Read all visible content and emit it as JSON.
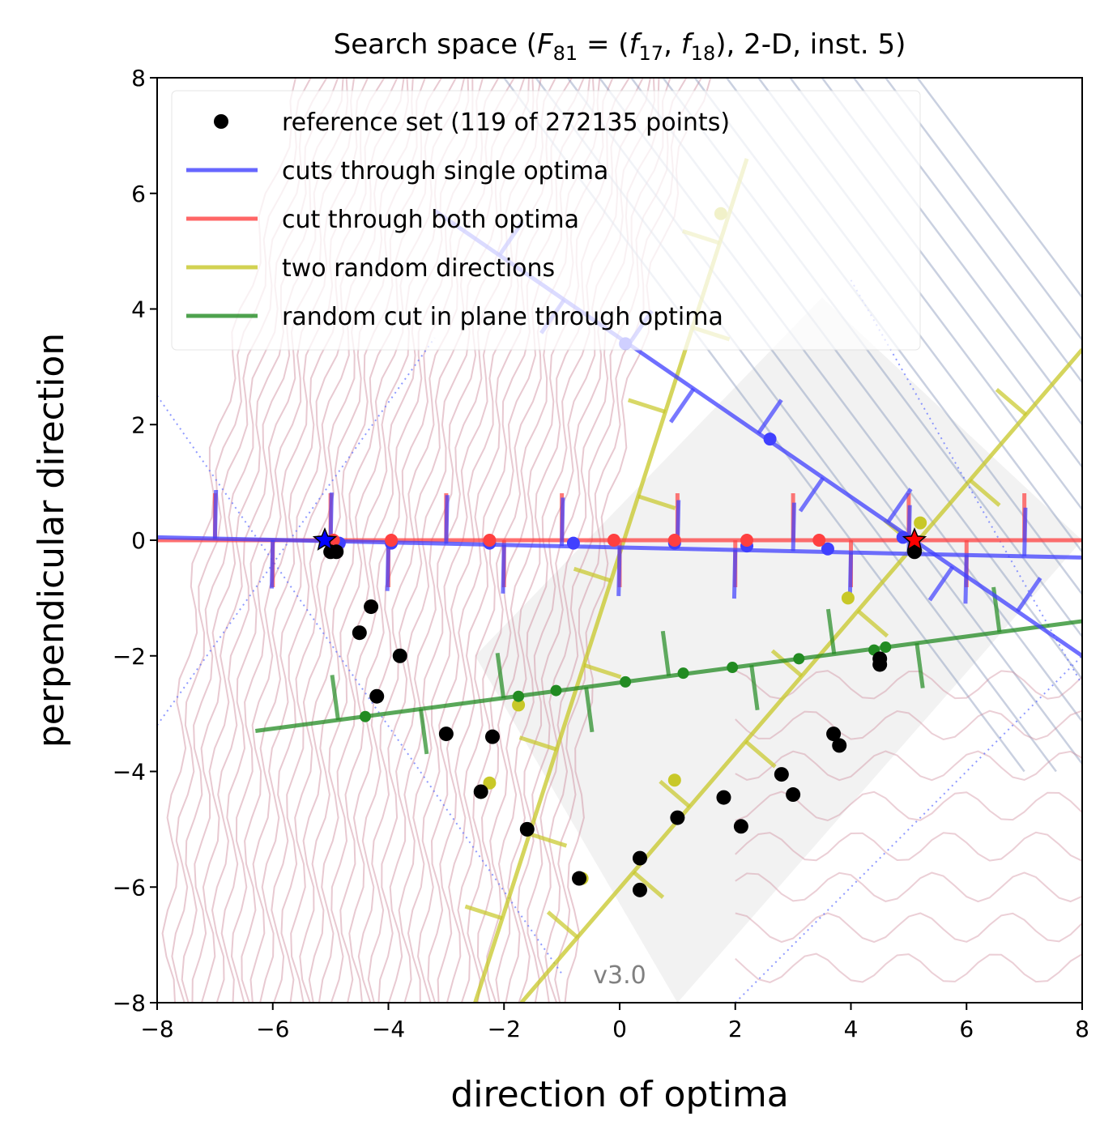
{
  "chart_data": {
    "type": "scatter",
    "title": "Search space (F81 = (f17, f18), 2-D, inst. 5)",
    "title_parts": {
      "prefix": "Search space (",
      "F": "F",
      "F_sub": "81",
      "eq": " = (",
      "f1": "f",
      "f1_sub": "17",
      "comma": ", ",
      "f2": "f",
      "f2_sub": "18",
      "suffix": "), 2-D, inst. 5)"
    },
    "xlabel": "direction of optima",
    "ylabel": "perpendicular direction",
    "xlim": [
      -8,
      8
    ],
    "ylim": [
      -8,
      8
    ],
    "xticks": [
      -8,
      -6,
      -4,
      -2,
      0,
      2,
      4,
      6,
      8
    ],
    "yticks": [
      -8,
      -6,
      -4,
      -2,
      0,
      2,
      4,
      6,
      8
    ],
    "xtick_labels": [
      "−8",
      "−6",
      "−4",
      "−2",
      "0",
      "2",
      "4",
      "6",
      "8"
    ],
    "ytick_labels": [
      "−8",
      "−6",
      "−4",
      "−2",
      "0",
      "2",
      "4",
      "6",
      "8"
    ],
    "legend_position": "top-left",
    "watermark": "v3.0",
    "colors": {
      "reference": "#000000",
      "single": "#4040ff",
      "both": "#ff4040",
      "random_dir": "#c8c828",
      "plane": "#228b22",
      "contour_f1": "#cc8899",
      "contour_f2": "#8899bb"
    },
    "series": [
      {
        "name": "reference set (119 of 272135 points)",
        "kind": "points",
        "x": [
          -5.0,
          -4.9,
          -4.3,
          -4.5,
          -3.8,
          -4.2,
          -3.0,
          -2.2,
          -2.4,
          -1.6,
          -0.7,
          0.35,
          0.35,
          1.0,
          1.8,
          2.1,
          2.8,
          3.0,
          3.7,
          3.8,
          4.5,
          4.5,
          5.1
        ],
        "y": [
          -0.2,
          -0.2,
          -1.15,
          -1.6,
          -2.0,
          -2.7,
          -3.35,
          -3.4,
          -4.35,
          -5.0,
          -5.85,
          -5.5,
          -6.05,
          -4.8,
          -4.45,
          -4.95,
          -4.05,
          -4.4,
          -3.35,
          -3.55,
          -2.05,
          -2.15,
          -0.2
        ]
      },
      {
        "name": "cuts through single optima",
        "kind": "line",
        "x": [
          -8,
          8
        ],
        "y": [
          0.05,
          -0.3
        ],
        "x2": [
          -3.2,
          8
        ],
        "y2": [
          5.7,
          -2.0
        ],
        "points_x": [
          0.1,
          2.6,
          4.9,
          -4.85,
          -3.95,
          -2.25,
          -0.8,
          0.95,
          2.2,
          3.6
        ],
        "points_y": [
          3.4,
          1.75,
          0.05,
          -0.05,
          -0.05,
          -0.05,
          -0.05,
          -0.05,
          -0.1,
          -0.15
        ]
      },
      {
        "name": "cut through both optima",
        "kind": "line",
        "x": [
          -8,
          8
        ],
        "y": [
          0,
          0
        ],
        "points_x": [
          -4.95,
          -3.95,
          -2.25,
          -0.1,
          0.95,
          2.2,
          3.45
        ],
        "points_y": [
          0,
          0,
          0,
          0,
          0,
          0,
          0
        ]
      },
      {
        "name": "two random directions",
        "kind": "line",
        "x": [
          -2.5,
          2.2
        ],
        "y": [
          -8,
          6.6
        ],
        "x2": [
          -1.7,
          8
        ],
        "y2": [
          -8,
          3.3
        ],
        "points_x": [
          1.75,
          -2.25,
          -1.75,
          -0.65,
          0.95,
          3.95,
          5.2
        ],
        "points_y": [
          5.65,
          -4.2,
          -2.85,
          -5.85,
          -4.15,
          -1.0,
          0.3
        ]
      },
      {
        "name": "random cut in plane through optima",
        "kind": "line",
        "x": [
          -6.3,
          8
        ],
        "y": [
          -3.3,
          -1.4
        ],
        "points_x": [
          -4.4,
          -1.75,
          -1.1,
          0.1,
          1.1,
          1.95,
          3.1,
          4.4,
          4.6
        ],
        "points_y": [
          -3.05,
          -2.7,
          -2.6,
          -2.45,
          -2.3,
          -2.2,
          -2.05,
          -1.9,
          -1.85
        ]
      }
    ],
    "optima": [
      {
        "x": -5.1,
        "y": 0.0,
        "color": "#0000ff"
      },
      {
        "x": 5.1,
        "y": 0.0,
        "color": "#ff0000"
      }
    ]
  }
}
